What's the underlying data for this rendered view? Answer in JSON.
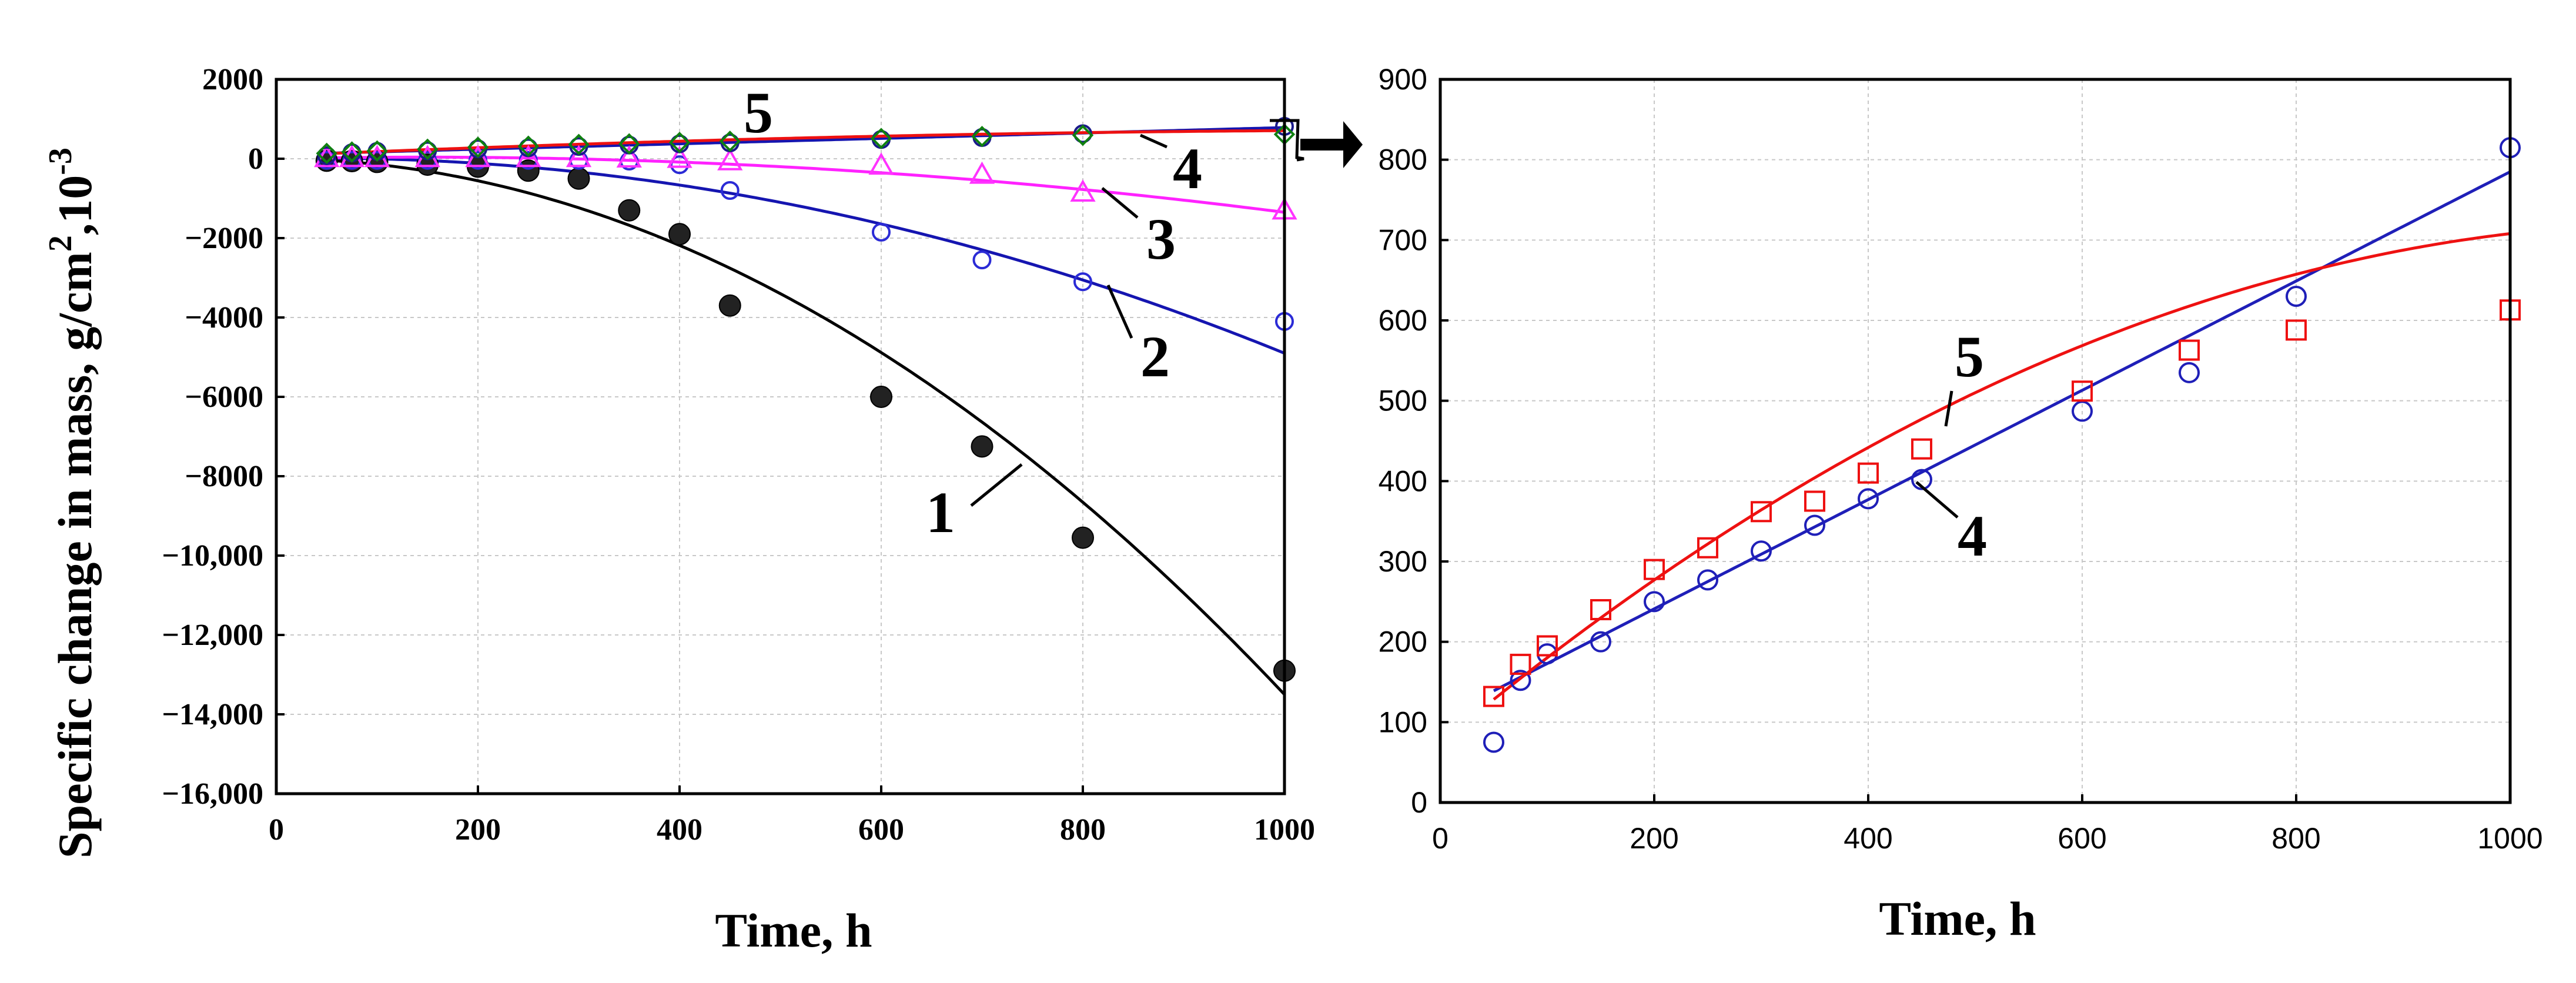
{
  "chart_data": [
    {
      "type": "scatter",
      "panel": "left",
      "title": "",
      "xlabel": "Time, h",
      "ylabel": "Specific change in mass, g/cm",
      "ylabel_sup1": "2",
      "ylabel_mid": ",10",
      "ylabel_sup2": "-3",
      "xlim": [
        0,
        1000
      ],
      "ylim": [
        -16000,
        2000
      ],
      "xticks": [
        0,
        200,
        400,
        600,
        800,
        1000
      ],
      "xtick_labels": [
        "0",
        "200",
        "400",
        "600",
        "800",
        "1000"
      ],
      "yticks": [
        2000,
        0,
        -2000,
        -4000,
        -6000,
        -8000,
        -10000,
        -12000,
        -14000,
        -16000
      ],
      "ytick_labels": [
        "2000",
        "0",
        "−2000",
        "−4000",
        "−6000",
        "−8000",
        "−10,000",
        "−12,000",
        "−14,000",
        "−16,000"
      ],
      "grid": true,
      "series": [
        {
          "name": "1",
          "marker": "filled-circle",
          "color": "#000000",
          "x": [
            50,
            75,
            100,
            150,
            200,
            250,
            300,
            350,
            400,
            450,
            600,
            700,
            800,
            1000
          ],
          "y": [
            -50,
            -60,
            -80,
            -150,
            -200,
            -300,
            -500,
            -1300,
            -1900,
            -3700,
            -6000,
            -7250,
            -9550,
            -12900
          ],
          "fit": {
            "type": "quadratic",
            "a": -0.0134,
            "b": -0.1,
            "c": 0
          }
        },
        {
          "name": "2",
          "marker": "open-circle",
          "color": "#2b2bd6",
          "x": [
            50,
            75,
            100,
            150,
            200,
            250,
            300,
            350,
            400,
            450,
            600,
            700,
            800,
            1000
          ],
          "y": [
            -40,
            -40,
            -40,
            -40,
            -40,
            -40,
            -40,
            -60,
            -150,
            -800,
            -1850,
            -2550,
            -3100,
            -4100
          ],
          "fit": {
            "type": "quadratic",
            "a": -0.0054,
            "b": 0.5,
            "c": 0
          }
        },
        {
          "name": "3",
          "marker": "open-triangle",
          "color": "#ff33ff",
          "x": [
            50,
            75,
            100,
            150,
            200,
            250,
            300,
            350,
            400,
            450,
            600,
            700,
            800,
            1000
          ],
          "y": [
            20,
            20,
            20,
            20,
            20,
            20,
            20,
            10,
            0,
            -60,
            -170,
            -400,
            -850,
            -1300
          ],
          "fit": {
            "type": "quadratic",
            "a": -0.0019,
            "b": 0.55,
            "c": 0
          }
        },
        {
          "name": "4",
          "marker": "open-circle",
          "color": "#1a1a8a",
          "x": [
            50,
            75,
            100,
            150,
            200,
            250,
            300,
            350,
            400,
            450,
            600,
            700,
            800,
            1000
          ],
          "y": [
            75,
            150,
            185,
            200,
            250,
            275,
            310,
            345,
            375,
            400,
            485,
            535,
            630,
            815
          ],
          "fit": {
            "type": "linear",
            "a": 0.68,
            "b": 105
          }
        },
        {
          "name": "5",
          "marker": "open-diamond",
          "color": "#108010",
          "x": [
            50,
            75,
            100,
            150,
            200,
            250,
            300,
            350,
            400,
            450,
            600,
            700,
            800,
            1000
          ],
          "y": [
            135,
            170,
            195,
            240,
            290,
            315,
            360,
            375,
            410,
            440,
            510,
            560,
            590,
            615
          ],
          "fit": {
            "type": "quadratic",
            "a": -0.000476,
            "b": 1.11,
            "c": 74
          }
        }
      ],
      "curve_labels": [
        "1",
        "2",
        "3",
        "4",
        "5"
      ]
    },
    {
      "type": "scatter",
      "panel": "right",
      "title": "",
      "xlabel": "Time, h",
      "ylabel": "",
      "xlim": [
        0,
        1000
      ],
      "ylim": [
        0,
        900
      ],
      "xticks": [
        0,
        200,
        400,
        600,
        800,
        1000
      ],
      "xtick_labels": [
        "0",
        "200",
        "400",
        "600",
        "800",
        "1000"
      ],
      "yticks": [
        0,
        100,
        200,
        300,
        400,
        500,
        600,
        700,
        800,
        900
      ],
      "ytick_labels": [
        "0",
        "100",
        "200",
        "300",
        "400",
        "500",
        "600",
        "700",
        "800",
        "900"
      ],
      "grid": true,
      "series": [
        {
          "name": "4",
          "marker": "open-circle",
          "color": "#1f1fb8",
          "x": [
            50,
            75,
            100,
            150,
            200,
            250,
            300,
            350,
            400,
            450,
            600,
            700,
            800,
            1000
          ],
          "y": [
            75,
            152,
            185,
            200,
            250,
            277,
            313,
            345,
            378,
            402,
            487,
            535,
            630,
            815
          ],
          "fit": {
            "type": "linear",
            "a": 0.68,
            "b": 105
          }
        },
        {
          "name": "5",
          "marker": "open-square",
          "color": "#ee1111",
          "x": [
            50,
            75,
            100,
            150,
            200,
            250,
            300,
            350,
            400,
            450,
            600,
            700,
            800,
            1000
          ],
          "y": [
            132,
            172,
            195,
            240,
            290,
            317,
            362,
            375,
            410,
            440,
            512,
            563,
            588,
            613
          ],
          "fit": {
            "type": "quadratic",
            "a": -0.000476,
            "b": 1.11,
            "c": 74
          }
        }
      ],
      "curve_labels": [
        "4",
        "5"
      ]
    }
  ]
}
